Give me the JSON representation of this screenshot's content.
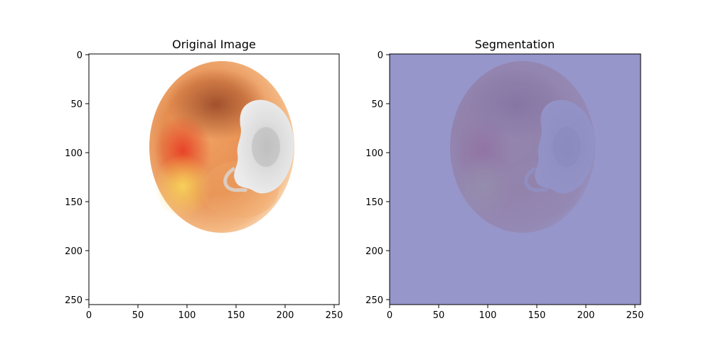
{
  "panels": [
    {
      "title": "Original Image",
      "xticks": [
        "0",
        "50",
        "100",
        "150",
        "200",
        "250"
      ],
      "yticks": [
        "0",
        "50",
        "100",
        "150",
        "200",
        "250"
      ],
      "overlay": false
    },
    {
      "title": "Segmentation",
      "xticks": [
        "0",
        "50",
        "100",
        "150",
        "200",
        "250"
      ],
      "yticks": [
        "0",
        "50",
        "100",
        "150",
        "200",
        "250"
      ],
      "overlay": true,
      "overlay_color": "#7f7fc0"
    }
  ],
  "colors": {
    "fruit_light": "#f6c987",
    "fruit_mid": "#e79a5a",
    "fruit_dark": "#b5552c",
    "fruit_red": "#e2452a",
    "fruit_yellow": "#f7c95a",
    "mold": "#dcdcdc",
    "mold_shadow": "#a8a8a8"
  }
}
